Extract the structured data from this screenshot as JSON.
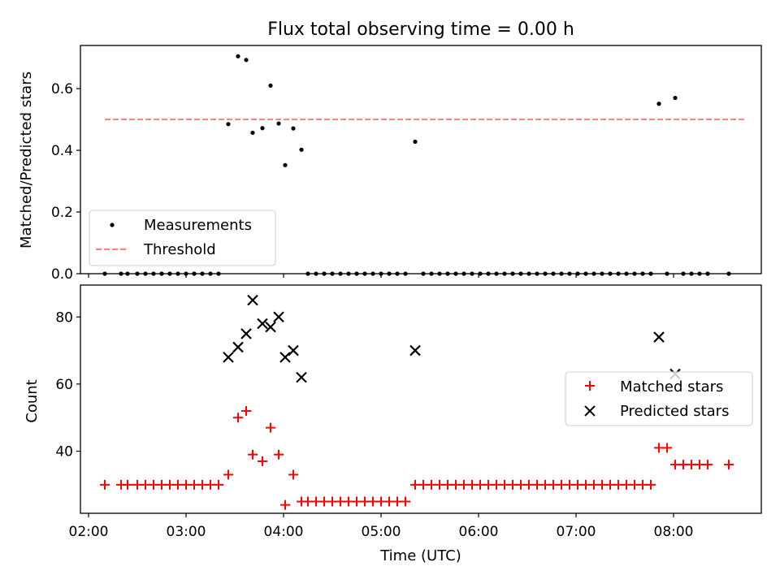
{
  "chart_data": [
    {
      "type": "scatter",
      "title": "Flux total observing time = 0.00 h",
      "ylabel": "Matched/Predicted stars",
      "xlabel": "",
      "ylim": [
        0,
        0.74
      ],
      "yticks": [
        0.0,
        0.2,
        0.4,
        0.6
      ],
      "ytick_labels": [
        "0.0",
        "0.2",
        "0.4",
        "0.6"
      ],
      "xlim": [
        "01:55",
        "08:54"
      ],
      "legend": {
        "placement": "lower-left",
        "items": [
          {
            "label": "Measurements",
            "marker": "dot",
            "color": "#000000"
          },
          {
            "label": "Threshold",
            "marker": "dashed-line",
            "color": "#ff7f7f"
          }
        ]
      },
      "threshold": {
        "value": 0.5,
        "x_start": "02:10",
        "x_end": "08:44",
        "color": "#ff7f7f"
      },
      "series": [
        {
          "name": "Measurements",
          "color": "#000000",
          "points": [
            [
              "02:10",
              0.0
            ],
            [
              "02:20",
              0.0
            ],
            [
              "02:24",
              0.0
            ],
            [
              "02:30",
              0.0
            ],
            [
              "02:35",
              0.0
            ],
            [
              "02:40",
              0.0
            ],
            [
              "02:45",
              0.0
            ],
            [
              "02:50",
              0.0
            ],
            [
              "02:55",
              0.0
            ],
            [
              "03:00",
              0.0
            ],
            [
              "03:05",
              0.0
            ],
            [
              "03:10",
              0.0
            ],
            [
              "03:15",
              0.0
            ],
            [
              "03:20",
              0.0
            ],
            [
              "03:26",
              0.485
            ],
            [
              "03:32",
              0.705
            ],
            [
              "03:37",
              0.693
            ],
            [
              "03:41",
              0.457
            ],
            [
              "03:47",
              0.472
            ],
            [
              "03:52",
              0.61
            ],
            [
              "03:57",
              0.487
            ],
            [
              "04:01",
              0.352
            ],
            [
              "04:06",
              0.471
            ],
            [
              "04:11",
              0.402
            ],
            [
              "04:15",
              0.0
            ],
            [
              "04:20",
              0.0
            ],
            [
              "04:25",
              0.0
            ],
            [
              "04:30",
              0.0
            ],
            [
              "04:35",
              0.0
            ],
            [
              "04:40",
              0.0
            ],
            [
              "04:45",
              0.0
            ],
            [
              "04:50",
              0.0
            ],
            [
              "04:55",
              0.0
            ],
            [
              "05:00",
              0.0
            ],
            [
              "05:05",
              0.0
            ],
            [
              "05:10",
              0.0
            ],
            [
              "05:15",
              0.0
            ],
            [
              "05:21",
              0.428
            ],
            [
              "05:26",
              0.0
            ],
            [
              "05:31",
              0.0
            ],
            [
              "05:36",
              0.0
            ],
            [
              "05:41",
              0.0
            ],
            [
              "05:46",
              0.0
            ],
            [
              "05:51",
              0.0
            ],
            [
              "05:56",
              0.0
            ],
            [
              "06:01",
              0.0
            ],
            [
              "06:06",
              0.0
            ],
            [
              "06:11",
              0.0
            ],
            [
              "06:16",
              0.0
            ],
            [
              "06:21",
              0.0
            ],
            [
              "06:26",
              0.0
            ],
            [
              "06:31",
              0.0
            ],
            [
              "06:36",
              0.0
            ],
            [
              "06:41",
              0.0
            ],
            [
              "06:46",
              0.0
            ],
            [
              "06:51",
              0.0
            ],
            [
              "06:56",
              0.0
            ],
            [
              "07:01",
              0.0
            ],
            [
              "07:06",
              0.0
            ],
            [
              "07:11",
              0.0
            ],
            [
              "07:16",
              0.0
            ],
            [
              "07:21",
              0.0
            ],
            [
              "07:26",
              0.0
            ],
            [
              "07:31",
              0.0
            ],
            [
              "07:36",
              0.0
            ],
            [
              "07:41",
              0.0
            ],
            [
              "07:46",
              0.0
            ],
            [
              "07:51",
              0.551
            ],
            [
              "07:56",
              0.0
            ],
            [
              "08:01",
              0.57
            ],
            [
              "08:06",
              0.0
            ],
            [
              "08:11",
              0.0
            ],
            [
              "08:16",
              0.0
            ],
            [
              "08:21",
              0.0
            ],
            [
              "08:34",
              0.0
            ]
          ]
        }
      ]
    },
    {
      "type": "scatter",
      "title": "",
      "ylabel": "Count",
      "xlabel": "Time (UTC)",
      "ylim": [
        21.5,
        89.5
      ],
      "yticks": [
        40,
        60,
        80
      ],
      "ytick_labels": [
        "40",
        "60",
        "80"
      ],
      "xlim": [
        "01:55",
        "08:54"
      ],
      "xticks": [
        "02:00",
        "03:00",
        "04:00",
        "05:00",
        "06:00",
        "07:00",
        "08:00"
      ],
      "xtick_labels": [
        "02:00",
        "03:00",
        "04:00",
        "05:00",
        "06:00",
        "07:00",
        "08:00"
      ],
      "legend": {
        "placement": "center-right",
        "items": [
          {
            "label": "Matched stars",
            "marker": "plus",
            "color": "#ff0000"
          },
          {
            "label": "Predicted stars",
            "marker": "x",
            "color": "#000000"
          }
        ]
      },
      "series": [
        {
          "name": "Matched stars",
          "marker": "plus",
          "color": "#ff0000",
          "points": [
            [
              "02:10",
              30
            ],
            [
              "02:20",
              30
            ],
            [
              "02:24",
              30
            ],
            [
              "02:30",
              30
            ],
            [
              "02:35",
              30
            ],
            [
              "02:40",
              30
            ],
            [
              "02:45",
              30
            ],
            [
              "02:50",
              30
            ],
            [
              "02:55",
              30
            ],
            [
              "03:00",
              30
            ],
            [
              "03:05",
              30
            ],
            [
              "03:10",
              30
            ],
            [
              "03:15",
              30
            ],
            [
              "03:20",
              30
            ],
            [
              "03:26",
              33
            ],
            [
              "03:32",
              50
            ],
            [
              "03:37",
              52
            ],
            [
              "03:41",
              39
            ],
            [
              "03:47",
              37
            ],
            [
              "03:52",
              47
            ],
            [
              "03:57",
              39
            ],
            [
              "04:01",
              24
            ],
            [
              "04:06",
              33
            ],
            [
              "04:11",
              25
            ],
            [
              "04:15",
              25
            ],
            [
              "04:20",
              25
            ],
            [
              "04:25",
              25
            ],
            [
              "04:30",
              25
            ],
            [
              "04:35",
              25
            ],
            [
              "04:40",
              25
            ],
            [
              "04:45",
              25
            ],
            [
              "04:50",
              25
            ],
            [
              "04:55",
              25
            ],
            [
              "05:00",
              25
            ],
            [
              "05:05",
              25
            ],
            [
              "05:10",
              25
            ],
            [
              "05:15",
              25
            ],
            [
              "05:21",
              30
            ],
            [
              "05:26",
              30
            ],
            [
              "05:31",
              30
            ],
            [
              "05:36",
              30
            ],
            [
              "05:41",
              30
            ],
            [
              "05:46",
              30
            ],
            [
              "05:51",
              30
            ],
            [
              "05:56",
              30
            ],
            [
              "06:01",
              30
            ],
            [
              "06:06",
              30
            ],
            [
              "06:11",
              30
            ],
            [
              "06:16",
              30
            ],
            [
              "06:21",
              30
            ],
            [
              "06:26",
              30
            ],
            [
              "06:31",
              30
            ],
            [
              "06:36",
              30
            ],
            [
              "06:41",
              30
            ],
            [
              "06:46",
              30
            ],
            [
              "06:51",
              30
            ],
            [
              "06:56",
              30
            ],
            [
              "07:01",
              30
            ],
            [
              "07:06",
              30
            ],
            [
              "07:11",
              30
            ],
            [
              "07:16",
              30
            ],
            [
              "07:21",
              30
            ],
            [
              "07:26",
              30
            ],
            [
              "07:31",
              30
            ],
            [
              "07:36",
              30
            ],
            [
              "07:41",
              30
            ],
            [
              "07:46",
              30
            ],
            [
              "07:51",
              41
            ],
            [
              "07:56",
              41
            ],
            [
              "08:01",
              36
            ],
            [
              "08:06",
              36
            ],
            [
              "08:11",
              36
            ],
            [
              "08:16",
              36
            ],
            [
              "08:21",
              36
            ],
            [
              "08:34",
              36
            ]
          ]
        },
        {
          "name": "Predicted stars",
          "marker": "x",
          "color": "#000000",
          "points": [
            [
              "03:26",
              68
            ],
            [
              "03:32",
              71
            ],
            [
              "03:37",
              75
            ],
            [
              "03:41",
              85
            ],
            [
              "03:47",
              78
            ],
            [
              "03:52",
              77
            ],
            [
              "03:57",
              80
            ],
            [
              "04:01",
              68
            ],
            [
              "04:06",
              70
            ],
            [
              "04:11",
              62
            ],
            [
              "05:21",
              70
            ],
            [
              "07:51",
              74
            ],
            [
              "08:01",
              63
            ]
          ]
        }
      ]
    }
  ]
}
